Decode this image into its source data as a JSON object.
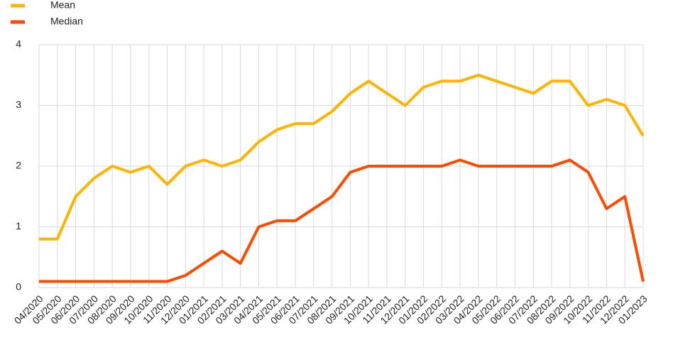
{
  "chart_data": {
    "type": "line",
    "categories": [
      "04/2020",
      "05/2020",
      "06/2020",
      "07/2020",
      "08/2020",
      "09/2020",
      "10/2020",
      "11/2020",
      "12/2020",
      "01/2021",
      "02/2021",
      "03/2021",
      "04/2021",
      "05/2021",
      "06/2021",
      "07/2021",
      "08/2021",
      "09/2021",
      "10/2021",
      "11/2021",
      "12/2021",
      "01/2022",
      "02/2022",
      "03/2022",
      "04/2022",
      "05/2022",
      "06/2022",
      "07/2022",
      "08/2022",
      "09/2022",
      "10/2022",
      "11/2022",
      "12/2022",
      "01/2023"
    ],
    "series": [
      {
        "name": "Mean",
        "color": "#ffb400",
        "values": [
          0.8,
          0.8,
          1.5,
          1.8,
          2.0,
          1.9,
          2.0,
          1.7,
          2.0,
          2.1,
          2.0,
          2.1,
          2.4,
          2.6,
          2.7,
          2.7,
          2.9,
          3.2,
          3.4,
          3.2,
          3.0,
          3.3,
          3.4,
          3.4,
          3.5,
          3.4,
          3.3,
          3.2,
          3.4,
          3.4,
          3.0,
          3.1,
          3.0,
          2.5
        ]
      },
      {
        "name": "Median",
        "color": "#ff4b00",
        "values": [
          0.1,
          0.1,
          0.1,
          0.1,
          0.1,
          0.1,
          0.1,
          0.1,
          0.2,
          0.4,
          0.6,
          0.4,
          1.0,
          1.1,
          1.1,
          1.3,
          1.5,
          1.9,
          2.0,
          2.0,
          2.0,
          2.0,
          2.0,
          2.1,
          2.0,
          2.0,
          2.0,
          2.0,
          2.0,
          2.1,
          1.9,
          1.3,
          1.5,
          0.1
        ]
      }
    ],
    "ylim": [
      0,
      4
    ],
    "yticks": [
      0,
      1,
      2,
      3,
      4
    ],
    "grid": true
  }
}
